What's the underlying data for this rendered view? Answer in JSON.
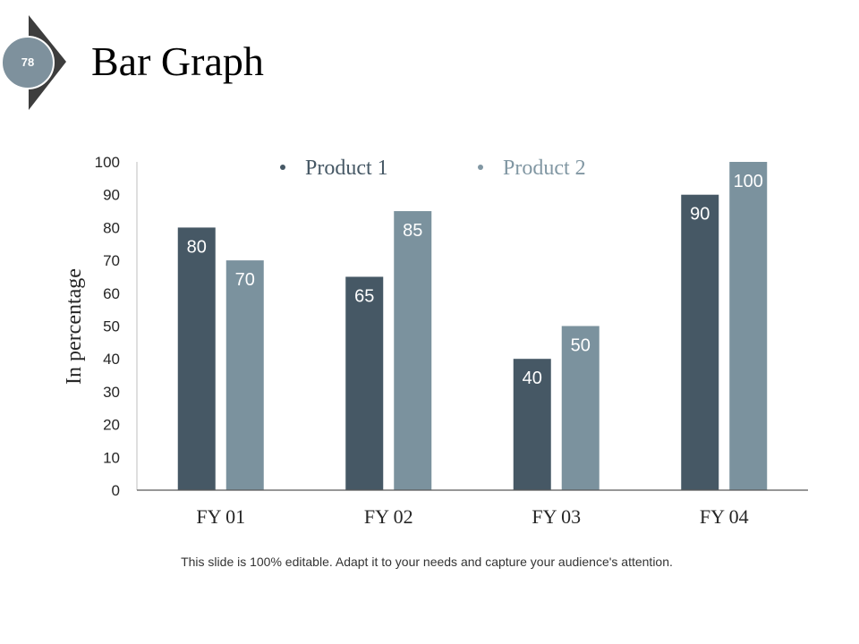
{
  "slide": {
    "page_number": "78",
    "title": "Bar Graph",
    "footer": "This slide is 100% editable. Adapt it to your needs and capture your audience's attention."
  },
  "colors": {
    "product1": "#465865",
    "product2": "#7b929e",
    "badge_dark": "#3d3d3d",
    "badge_circle": "#7e919d"
  },
  "chart_data": {
    "type": "bar",
    "title": "",
    "xlabel": "",
    "ylabel": "In percentage",
    "categories": [
      "FY 01",
      "FY 02",
      "FY 03",
      "FY 04"
    ],
    "series": [
      {
        "name": "Product 1",
        "values": [
          80,
          65,
          40,
          90
        ]
      },
      {
        "name": "Product 2",
        "values": [
          70,
          85,
          50,
          100
        ]
      }
    ],
    "ylim": [
      0,
      100
    ],
    "yticks": [
      0,
      10,
      20,
      30,
      40,
      50,
      60,
      70,
      80,
      90,
      100
    ],
    "grid": false,
    "legend": "top"
  }
}
